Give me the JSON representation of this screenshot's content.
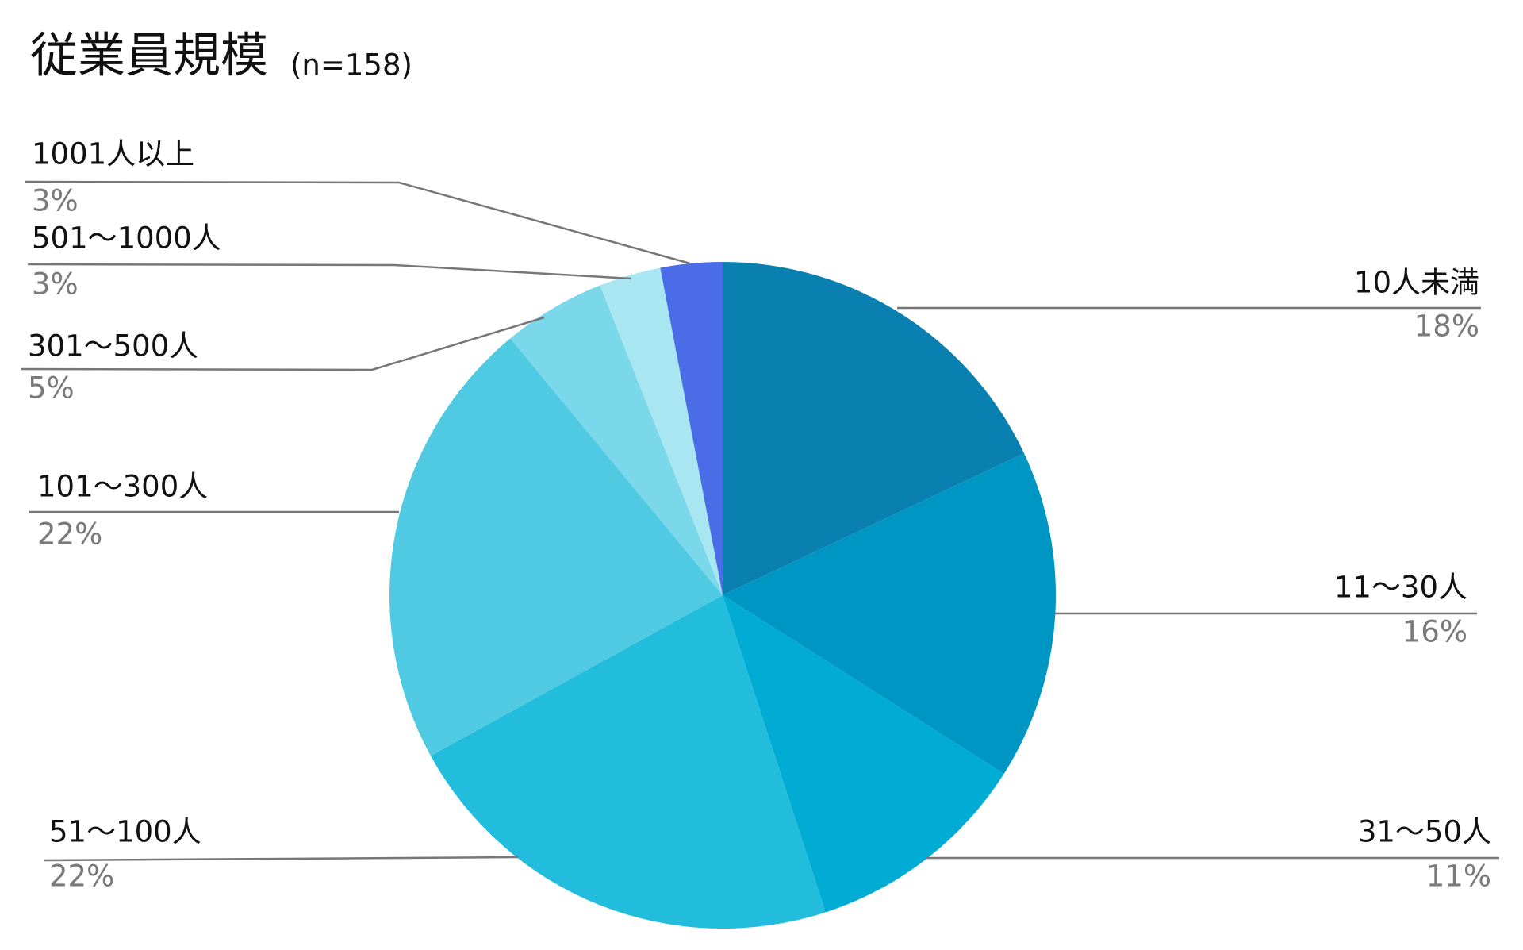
{
  "chart_data": {
    "type": "pie",
    "title": "従業員規模",
    "subtitle": "(n=158)",
    "categories": [
      "10人未満",
      "11〜30人",
      "31〜50人",
      "51〜100人",
      "101〜300人",
      "301〜500人",
      "501〜1000人",
      "1001人以上"
    ],
    "values": [
      18,
      16,
      11,
      22,
      22,
      5,
      3,
      3
    ],
    "value_labels": [
      "18%",
      "16%",
      "11%",
      "22%",
      "22%",
      "5%",
      "3%",
      "3%"
    ],
    "colors": [
      "#0a80b0",
      "#0096c4",
      "#00acd4",
      "#22bcdc",
      "#50cae2",
      "#7ad8ea",
      "#a8e6f2",
      "#4a6ce6"
    ]
  }
}
